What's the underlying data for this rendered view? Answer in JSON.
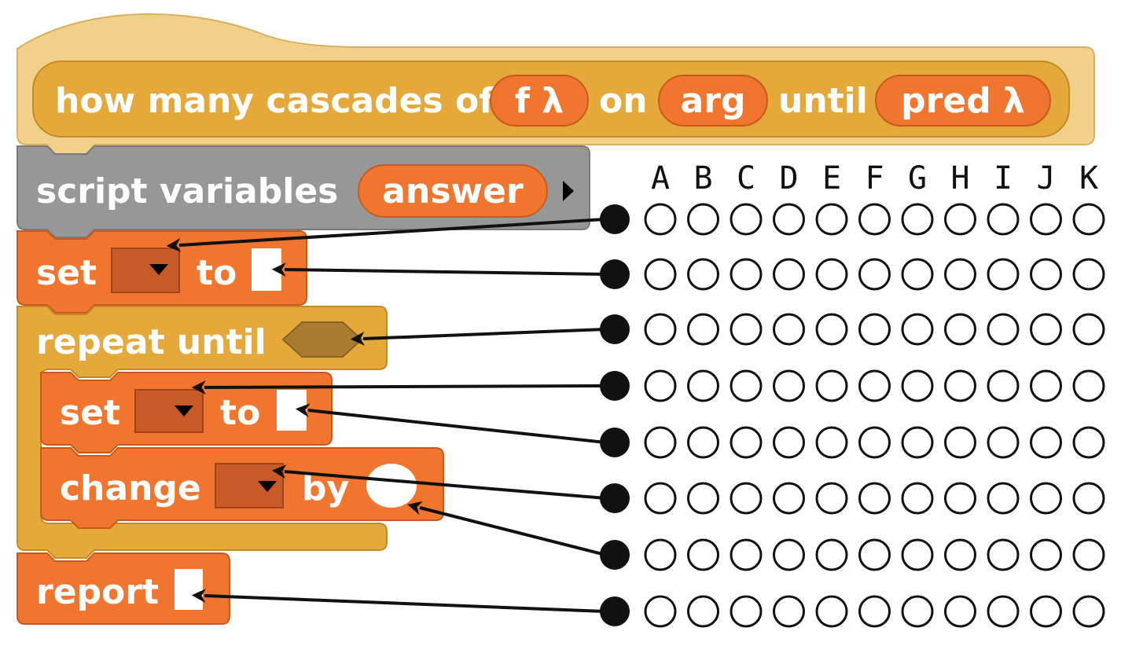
{
  "colors": {
    "hat": "#F1D08A",
    "control": "#E4A93A",
    "variables": "#F0752E",
    "slot_dark": "#C75A26",
    "gray": "#979797",
    "predicate_slot": "#A97B31",
    "text": "#ffffff",
    "ink": "#111111"
  },
  "hat_block": {
    "label_prefix": "how many cascades of",
    "param1": "f λ",
    "label_on": "on",
    "param2": "arg",
    "label_until": "until",
    "param3": "pred λ"
  },
  "script_variables": {
    "label": "script variables",
    "var": "answer",
    "arrow_icon": "right-triangle-icon"
  },
  "set1": {
    "label": "set",
    "to": "to"
  },
  "repeat": {
    "label": "repeat until"
  },
  "set2": {
    "label": "set",
    "to": "to"
  },
  "change": {
    "label": "change",
    "by": "by"
  },
  "report": {
    "label": "report"
  },
  "columns": [
    "A",
    "B",
    "C",
    "D",
    "E",
    "F",
    "G",
    "H",
    "I",
    "J",
    "K"
  ],
  "answer_rows": 8
}
